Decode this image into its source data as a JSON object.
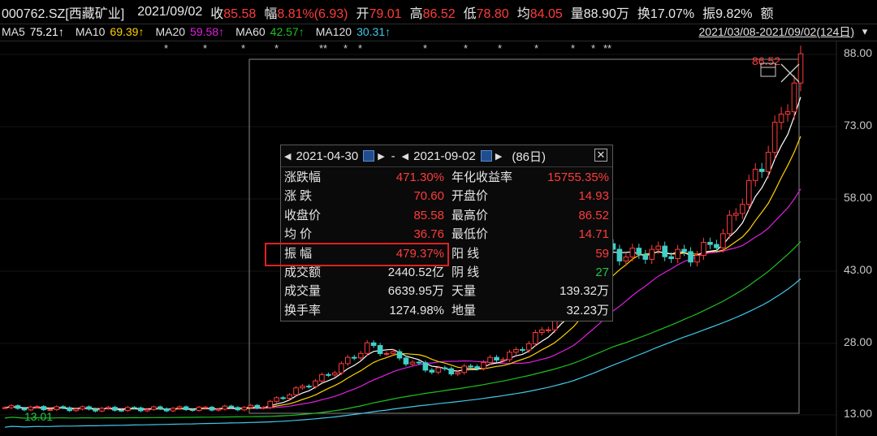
{
  "header": {
    "code_name": "000762.SZ[西藏矿业]",
    "date": "2021/09/02",
    "close_label": "收",
    "close_value": "85.58",
    "change_label": "幅",
    "change_value": "8.81%(6.93)",
    "open_label": "开",
    "open_value": "79.01",
    "high_label": "高",
    "high_value": "86.52",
    "low_label": "低",
    "low_value": "78.80",
    "avg_label": "均",
    "avg_value": "84.05",
    "volume_label": "量",
    "volume_value": "88.90万",
    "turnover_label": "换",
    "turnover_value": "17.07%",
    "amplitude_label": "振",
    "amplitude_value": "9.82%",
    "trailing": "额"
  },
  "ma_bar": {
    "ma5_label": "MA5",
    "ma5_value": "75.21↑",
    "ma10_label": "MA10",
    "ma10_value": "69.39↑",
    "ma20_label": "MA20",
    "ma20_value": "59.58↑",
    "ma60_label": "MA60",
    "ma60_value": "42.57↑",
    "ma120_label": "MA120",
    "ma120_value": "30.31↑",
    "range": "2021/03/08-2021/09/02(124日)"
  },
  "colors": {
    "up": "#ff3b3b",
    "down": "#40d0c8",
    "ma5": "#ffffff",
    "ma10": "#ffd200",
    "ma20": "#e020e0",
    "ma60": "#20c020",
    "ma120": "#40c8e8",
    "background": "#000000"
  },
  "y_axis": [
    "88.00",
    "73.00",
    "58.00",
    "43.00",
    "28.00",
    "13.00"
  ],
  "annotations": {
    "high_marker": "86.52",
    "low_marker": "13.01"
  },
  "stars": [
    "*",
    "*",
    "*",
    "*",
    "**",
    "*",
    "*",
    "*",
    "*",
    "*",
    "*",
    "*",
    "*",
    "**"
  ],
  "panel": {
    "start_date": "2021-04-30",
    "dash": "-",
    "end_date": "2021-09-02",
    "days": "(86日)",
    "rows": [
      {
        "l1": "涨跌幅",
        "v1": "471.30%",
        "c1": "red",
        "l2": "年化收益率",
        "v2": "15755.35%",
        "c2": "red"
      },
      {
        "l1": "涨  跌",
        "v1": "70.60",
        "c1": "red",
        "l2": "开盘价",
        "v2": "14.93",
        "c2": "red"
      },
      {
        "l1": "收盘价",
        "v1": "85.58",
        "c1": "red",
        "l2": "最高价",
        "v2": "86.52",
        "c2": "red"
      },
      {
        "l1": "均  价",
        "v1": "36.76",
        "c1": "red",
        "l2": "最低价",
        "v2": "14.71",
        "c2": "red"
      },
      {
        "l1": "振  幅",
        "v1": "479.37%",
        "c1": "red",
        "l2": "阳  线",
        "v2": "59",
        "c2": "red"
      },
      {
        "l1": "成交额",
        "v1": "2440.52亿",
        "c1": "white",
        "l2": "阴  线",
        "v2": "27",
        "c2": "green"
      },
      {
        "l1": "成交量",
        "v1": "6639.95万",
        "c1": "white",
        "l2": "天量",
        "v2": "139.32万",
        "c2": "white"
      },
      {
        "l1": "换手率",
        "v1": "1274.98%",
        "c1": "white",
        "l2": "地量",
        "v2": "32.23万",
        "c2": "white"
      }
    ]
  }
}
